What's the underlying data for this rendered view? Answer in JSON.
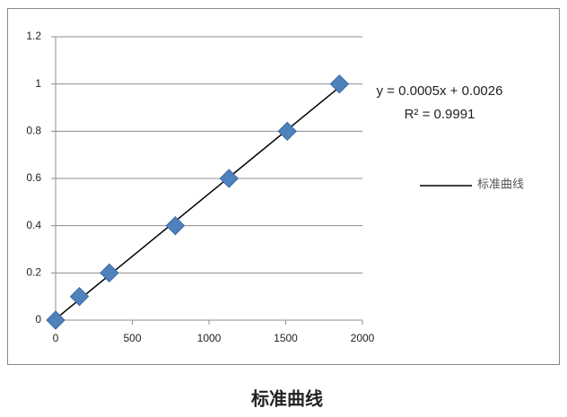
{
  "chart_data": {
    "type": "scatter",
    "title": "标准曲线",
    "series": [
      {
        "name": "标准曲线",
        "color": "#4f81bd",
        "x": [
          0,
          155,
          350,
          780,
          1130,
          1510,
          1850
        ],
        "values": [
          0,
          0.1,
          0.2,
          0.4,
          0.6,
          0.8,
          1.0
        ]
      }
    ],
    "trendline": {
      "color": "#000000",
      "equation": "y = 0.0005x + 0.0026",
      "r_squared": "R² = 0.9991"
    },
    "xlim": [
      0,
      2000
    ],
    "xticks": [
      0,
      500,
      1000,
      1500,
      2000
    ],
    "ylim": [
      0,
      1.2
    ],
    "yticks": [
      0,
      0.2,
      0.4,
      0.6,
      0.8,
      1,
      1.2
    ],
    "grid": true,
    "legend": "right"
  }
}
